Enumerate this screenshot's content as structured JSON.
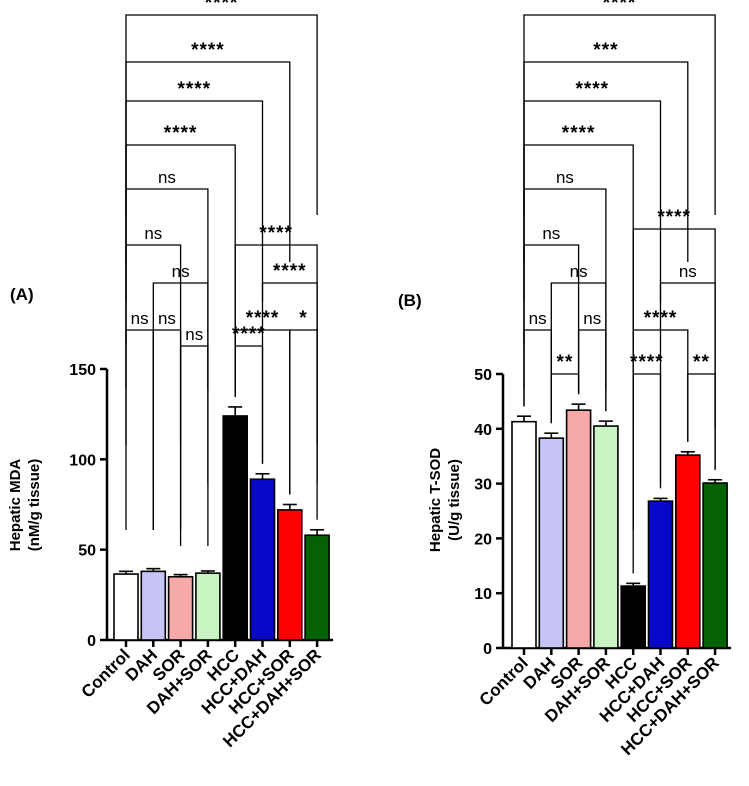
{
  "chart_data": [
    {
      "type": "bar",
      "panel_label": "(A)",
      "ylabel": [
        "Hepatic MDA",
        "(nM/g tissue)"
      ],
      "ylim": [
        0,
        150
      ],
      "yticks": [
        0,
        50,
        100,
        150
      ],
      "categories": [
        "Control",
        "DAH",
        "SOR",
        "DAH+SOR",
        "HCC",
        "HCC+DAH",
        "HCC+SOR",
        "HCC+DAH+SOR"
      ],
      "values": [
        36.5,
        38,
        35,
        37,
        124,
        89,
        72,
        58
      ],
      "errors": [
        1.5,
        1.5,
        1.2,
        1.2,
        5,
        3,
        3,
        3
      ],
      "colors": [
        "#ffffff",
        "#c6c3f5",
        "#f7a8a8",
        "#c9f5c4",
        "#000000",
        "#0808c8",
        "#ff0000",
        "#046104"
      ],
      "comparisons": [
        {
          "from": 0,
          "to": 7,
          "label": "****"
        },
        {
          "from": 0,
          "to": 6,
          "label": "****"
        },
        {
          "from": 0,
          "to": 5,
          "label": "****"
        },
        {
          "from": 0,
          "to": 4,
          "label": "****"
        },
        {
          "from": 0,
          "to": 3,
          "label": "ns"
        },
        {
          "from": 0,
          "to": 2,
          "label": "ns"
        },
        {
          "from": 1,
          "to": 3,
          "label": "ns"
        },
        {
          "from": 0,
          "to": 1,
          "label": "ns"
        },
        {
          "from": 2,
          "to": 3,
          "label": "ns"
        },
        {
          "from": 1,
          "to": 2,
          "label": "ns"
        },
        {
          "from": 4,
          "to": 7,
          "label": "****"
        },
        {
          "from": 5,
          "to": 7,
          "label": "****"
        },
        {
          "from": 4,
          "to": 6,
          "label": "****"
        },
        {
          "from": 4,
          "to": 5,
          "label": "****"
        },
        {
          "from": 6,
          "to": 7,
          "label": "*"
        }
      ]
    },
    {
      "type": "bar",
      "panel_label": "(B)",
      "ylabel": [
        "Hepatic T-SOD",
        "(U/g tissue)"
      ],
      "ylim": [
        0,
        50
      ],
      "yticks": [
        0,
        10,
        20,
        30,
        40,
        50
      ],
      "categories": [
        "Control",
        "DAH",
        "SOR",
        "DAH+SOR",
        "HCC",
        "HCC+DAH",
        "HCC+SOR",
        "HCC+DAH+SOR"
      ],
      "values": [
        41.3,
        38.3,
        43.4,
        40.5,
        11.3,
        26.8,
        35.2,
        30.1
      ],
      "errors": [
        1,
        0.9,
        1.1,
        0.9,
        0.5,
        0.5,
        0.6,
        0.6
      ],
      "colors": [
        "#ffffff",
        "#c6c3f5",
        "#f7a8a8",
        "#c9f5c4",
        "#000000",
        "#0808c8",
        "#ff0000",
        "#046104"
      ],
      "comparisons": [
        {
          "from": 0,
          "to": 7,
          "label": "****"
        },
        {
          "from": 0,
          "to": 6,
          "label": "***"
        },
        {
          "from": 0,
          "to": 5,
          "label": "****"
        },
        {
          "from": 0,
          "to": 4,
          "label": "****"
        },
        {
          "from": 0,
          "to": 3,
          "label": "ns"
        },
        {
          "from": 0,
          "to": 2,
          "label": "ns"
        },
        {
          "from": 4,
          "to": 7,
          "label": "****"
        },
        {
          "from": 1,
          "to": 3,
          "label": "ns"
        },
        {
          "from": 5,
          "to": 7,
          "label": "ns"
        },
        {
          "from": 0,
          "to": 1,
          "label": "ns"
        },
        {
          "from": 2,
          "to": 3,
          "label": "ns"
        },
        {
          "from": 4,
          "to": 6,
          "label": "****"
        },
        {
          "from": 1,
          "to": 2,
          "label": "**"
        },
        {
          "from": 4,
          "to": 5,
          "label": "****"
        },
        {
          "from": 6,
          "to": 7,
          "label": "**"
        }
      ]
    }
  ]
}
